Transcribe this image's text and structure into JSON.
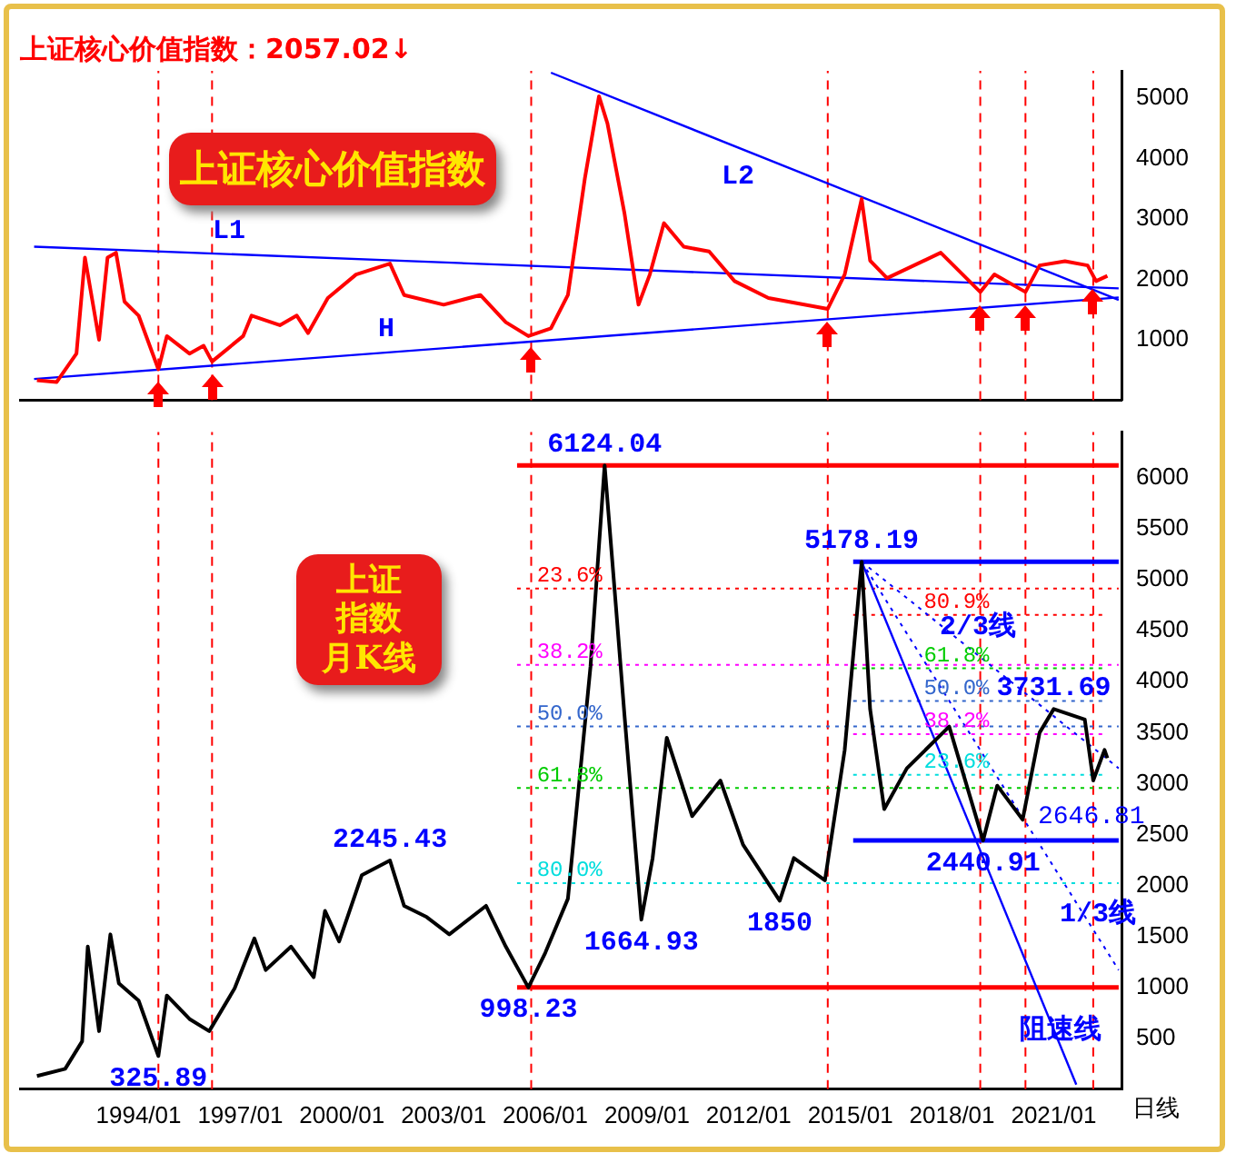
{
  "chart_data": [
    {
      "type": "line",
      "title": "上证核心价值指数：2057.02↓",
      "xlim": [
        "1990-07",
        "2023-01"
      ],
      "ylim": [
        0,
        5450
      ],
      "yticks": [
        1000,
        2000,
        3000,
        4000,
        5000
      ],
      "tick_labels": "y",
      "series": [
        {
          "color": "#ff0000",
          "x": [
            "1991-01",
            "1991-08",
            "1992-03",
            "1992-06",
            "1992-11",
            "1993-02",
            "1993-05",
            "1993-08",
            "1994-01",
            "1994-08",
            "1994-11",
            "1995-07",
            "1995-12",
            "1996-03",
            "1997-02",
            "1997-05",
            "1998-03",
            "1998-09",
            "1999-01",
            "1999-08",
            "2000-06",
            "2001-06",
            "2001-11",
            "2003-01",
            "2004-02",
            "2004-11",
            "2005-07",
            "2006-03",
            "2006-09",
            "2007-03",
            "2007-08",
            "2007-11",
            "2008-05",
            "2008-10",
            "2009-02",
            "2009-07",
            "2010-02",
            "2010-11",
            "2011-08",
            "2012-08",
            "2014-05",
            "2014-11",
            "2015-05",
            "2015-08",
            "2016-02",
            "2017-09",
            "2018-11",
            "2019-04",
            "2020-03",
            "2020-08",
            "2021-05",
            "2022-01",
            "2022-04",
            "2022-08"
          ],
          "values": [
            330,
            300,
            770,
            2360,
            1000,
            2360,
            2440,
            1630,
            1400,
            510,
            1060,
            770,
            900,
            640,
            1060,
            1400,
            1240,
            1400,
            1110,
            1690,
            2080,
            2260,
            1740,
            1580,
            1740,
            1290,
            1060,
            1190,
            1740,
            3670,
            5030,
            4580,
            3100,
            1580,
            2080,
            2930,
            2540,
            2460,
            1970,
            1690,
            1510,
            2080,
            3330,
            2310,
            2020,
            2440,
            1790,
            2080,
            1790,
            2230,
            2300,
            2230,
            1970,
            2057.02
          ]
        },
        {
          "color": "#0000ff",
          "x": [
            "1990-12",
            "2022-12"
          ],
          "values": [
            2540,
            1850
          ]
        },
        {
          "color": "#0000ff",
          "x": [
            "1990-12",
            "2022-12"
          ],
          "values": [
            350,
            1700
          ]
        },
        {
          "color": "#0000ff",
          "x": [
            "2006-03",
            "2022-12"
          ],
          "values": [
            5420,
            1660
          ]
        }
      ],
      "ref_lines": [
        {
          "axis": "x",
          "value": "1994-08",
          "color": "#ff0000",
          "line_style": "dashed"
        },
        {
          "axis": "x",
          "value": "1996-03",
          "color": "#ff0000",
          "line_style": "dashed"
        },
        {
          "axis": "x",
          "value": "2005-08",
          "color": "#ff0000",
          "line_style": "dashed"
        },
        {
          "axis": "x",
          "value": "2014-05",
          "color": "#ff0000",
          "line_style": "dashed"
        },
        {
          "axis": "x",
          "value": "2018-11",
          "color": "#ff0000",
          "line_style": "dashed"
        },
        {
          "axis": "x",
          "value": "2020-03",
          "color": "#ff0000",
          "line_style": "dashed"
        },
        {
          "axis": "x",
          "value": "2022-03",
          "color": "#ff0000",
          "line_style": "dashed"
        }
      ],
      "annotations": [
        "上证核心价值指数",
        "L1",
        "H",
        "L2"
      ]
    },
    {
      "type": "line",
      "xlim": [
        "1990-07",
        "2023-01"
      ],
      "xticks": [
        {
          "value": "1994-01",
          "label": "1994/01"
        },
        {
          "value": "1997-01",
          "label": "1997/01"
        },
        {
          "value": "2000-01",
          "label": "2000/01"
        },
        {
          "value": "2003-01",
          "label": "2003/01"
        },
        {
          "value": "2006-01",
          "label": "2006/01"
        },
        {
          "value": "2009-01",
          "label": "2009/01"
        },
        {
          "value": "2012-01",
          "label": "2012/01"
        },
        {
          "value": "2015-01",
          "label": "2015/01"
        },
        {
          "value": "2018-01",
          "label": "2018/01"
        },
        {
          "value": "2021-01",
          "label": "2021/01"
        }
      ],
      "ylim": [
        0,
        6450
      ],
      "yticks": [
        500,
        1000,
        1500,
        2000,
        2500,
        3000,
        3500,
        4000,
        4500,
        5000,
        5500,
        6000
      ],
      "series": [
        {
          "color": "#000000",
          "x": [
            "1991-01",
            "1991-11",
            "1992-05",
            "1992-07",
            "1992-11",
            "1993-03",
            "1993-06",
            "1994-01",
            "1994-08",
            "1994-11",
            "1995-07",
            "1996-02",
            "1996-11",
            "1997-06",
            "1997-10",
            "1998-07",
            "1999-03",
            "1999-07",
            "1999-12",
            "2000-08",
            "2001-06",
            "2001-11",
            "2002-07",
            "2003-03",
            "2004-04",
            "2004-11",
            "2005-07",
            "2006-01",
            "2006-09",
            "2007-05",
            "2007-10",
            "2008-02",
            "2008-05",
            "2008-11",
            "2009-03",
            "2009-08",
            "2010-05",
            "2011-03",
            "2011-11",
            "2012-12",
            "2013-05",
            "2014-04",
            "2014-11",
            "2015-05",
            "2015-08",
            "2016-01",
            "2016-09",
            "2017-12",
            "2018-12",
            "2019-05",
            "2020-02",
            "2020-08",
            "2021-01",
            "2021-12",
            "2022-03",
            "2022-07",
            "2022-08"
          ],
          "values": [
            130,
            200,
            470,
            1400,
            570,
            1520,
            1040,
            870,
            325.89,
            920,
            690,
            570,
            990,
            1480,
            1170,
            1400,
            1100,
            1750,
            1450,
            2100,
            2245.43,
            1800,
            1690,
            1520,
            1800,
            1400,
            998.23,
            1340,
            1870,
            4150,
            6124.04,
            4740,
            3680,
            1664.93,
            2270,
            3450,
            2680,
            3030,
            2400,
            1850,
            2270,
            2050,
            3330,
            5178.19,
            3730,
            2750,
            3150,
            3560,
            2440.91,
            2980,
            2646.81,
            3500,
            3731.69,
            3630,
            3030,
            3330,
            3250
          ]
        },
        {
          "color": "#0000ff",
          "x": [
            "2015-05",
            "2021-09"
          ],
          "values": [
            5178.19,
            45
          ]
        },
        {
          "color": "#0000ff",
          "x": [
            "2015-05",
            "2022-12"
          ],
          "values": [
            5178.19,
            3150
          ],
          "line_style": "dotted"
        },
        {
          "color": "#0000ff",
          "x": [
            "2015-05",
            "2022-12"
          ],
          "values": [
            5178.19,
            1170
          ],
          "line_style": "dotted"
        },
        {
          "color": "#ff0000",
          "x": [
            "2005-03",
            "2022-12"
          ],
          "values": [
            6124.04,
            6124.04
          ]
        },
        {
          "color": "#ff0000",
          "x": [
            "2005-03",
            "2022-12"
          ],
          "values": [
            998.23,
            998.23
          ]
        },
        {
          "color": "#0000ff",
          "x": [
            "2015-02",
            "2022-12"
          ],
          "values": [
            5178.19,
            5178.19
          ]
        },
        {
          "color": "#0000ff",
          "x": [
            "2015-02",
            "2022-12"
          ],
          "values": [
            2440.91,
            2440.91
          ]
        },
        {
          "color": "#ff0000",
          "x": [
            "2005-03",
            "2022-12"
          ],
          "values": [
            4914,
            4914
          ],
          "line_style": "dotted"
        },
        {
          "color": "#ff00ff",
          "x": [
            "2005-03",
            "2022-12"
          ],
          "values": [
            4166,
            4166
          ],
          "line_style": "dotted"
        },
        {
          "color": "#3366cc",
          "x": [
            "2005-03",
            "2022-12"
          ],
          "values": [
            3561,
            3561
          ],
          "line_style": "dotted"
        },
        {
          "color": "#00cc00",
          "x": [
            "2005-03",
            "2022-12"
          ],
          "values": [
            2956,
            2956
          ],
          "line_style": "dotted"
        },
        {
          "color": "#00dddd",
          "x": [
            "2005-03",
            "2022-12"
          ],
          "values": [
            2023,
            2023
          ],
          "line_style": "dotted"
        },
        {
          "color": "#ff0000",
          "x": [
            "2015-02",
            "2022-07"
          ],
          "values": [
            4655,
            4655
          ],
          "line_style": "dotted"
        },
        {
          "color": "#00cc00",
          "x": [
            "2015-02",
            "2022-07"
          ],
          "values": [
            4132,
            4132
          ],
          "line_style": "dotted"
        },
        {
          "color": "#3366cc",
          "x": [
            "2015-02",
            "2022-07"
          ],
          "values": [
            3810,
            3810
          ],
          "line_style": "dotted"
        },
        {
          "color": "#ff00ff",
          "x": [
            "2015-02",
            "2022-07"
          ],
          "values": [
            3486,
            3486
          ],
          "line_style": "dotted"
        },
        {
          "color": "#00dddd",
          "x": [
            "2015-02",
            "2022-07"
          ],
          "values": [
            3087,
            3087
          ],
          "line_style": "dotted"
        }
      ],
      "ref_lines": [
        {
          "axis": "x",
          "value": "1994-08",
          "color": "#ff0000",
          "line_style": "dashed"
        },
        {
          "axis": "x",
          "value": "1996-03",
          "color": "#ff0000",
          "line_style": "dashed"
        },
        {
          "axis": "x",
          "value": "2005-08",
          "color": "#ff0000",
          "line_style": "dashed"
        },
        {
          "axis": "x",
          "value": "2014-05",
          "color": "#ff0000",
          "line_style": "dashed"
        },
        {
          "axis": "x",
          "value": "2018-11",
          "color": "#ff0000",
          "line_style": "dashed"
        },
        {
          "axis": "x",
          "value": "2020-03",
          "color": "#ff0000",
          "line_style": "dashed"
        },
        {
          "axis": "x",
          "value": "2022-03",
          "color": "#ff0000",
          "line_style": "dashed"
        }
      ],
      "annotations": [
        "上证指数月K线",
        "日线",
        "2646.81",
        "2/3线",
        "1/3线",
        "阻速线",
        {
          "text": "6124.04",
          "x": "2007-10",
          "y": 6124.04
        },
        {
          "text": "5178.19",
          "x": "2015-05",
          "y": 5178.19
        },
        {
          "text": "3731.69",
          "x": "2021-01",
          "y": 3731.69
        },
        {
          "text": "2440.91",
          "x": "2018-12",
          "y": 2440.91
        },
        {
          "text": "1850",
          "x": "2012-12",
          "y": 1850
        },
        {
          "text": "1664.93",
          "x": "2008-11",
          "y": 1664.93
        },
        {
          "text": "998.23",
          "x": "2005-07",
          "y": 998.23
        },
        {
          "text": "2245.43",
          "x": "2001-06",
          "y": 2245.43
        },
        {
          "text": "325.89",
          "x": "1994-08",
          "y": 325.89
        },
        {
          "text": "23.6%",
          "x": "2005-10",
          "y": 4914
        },
        {
          "text": "38.2%",
          "x": "2005-10",
          "y": 4166
        },
        {
          "text": "50.0%",
          "x": "2005-10",
          "y": 3561
        },
        {
          "text": "61.8%",
          "x": "2005-10",
          "y": 2956
        },
        {
          "text": "80.0%",
          "x": "2005-10",
          "y": 2023
        },
        {
          "text": "80.9%",
          "x": "2017-03",
          "y": 4655
        },
        {
          "text": "61.8%",
          "x": "2017-03",
          "y": 4132
        },
        {
          "text": "50.0%",
          "x": "2017-03",
          "y": 3810
        },
        {
          "text": "38.2%",
          "x": "2017-03",
          "y": 3486
        },
        {
          "text": "23.6%",
          "x": "2017-03",
          "y": 3087
        }
      ]
    }
  ]
}
